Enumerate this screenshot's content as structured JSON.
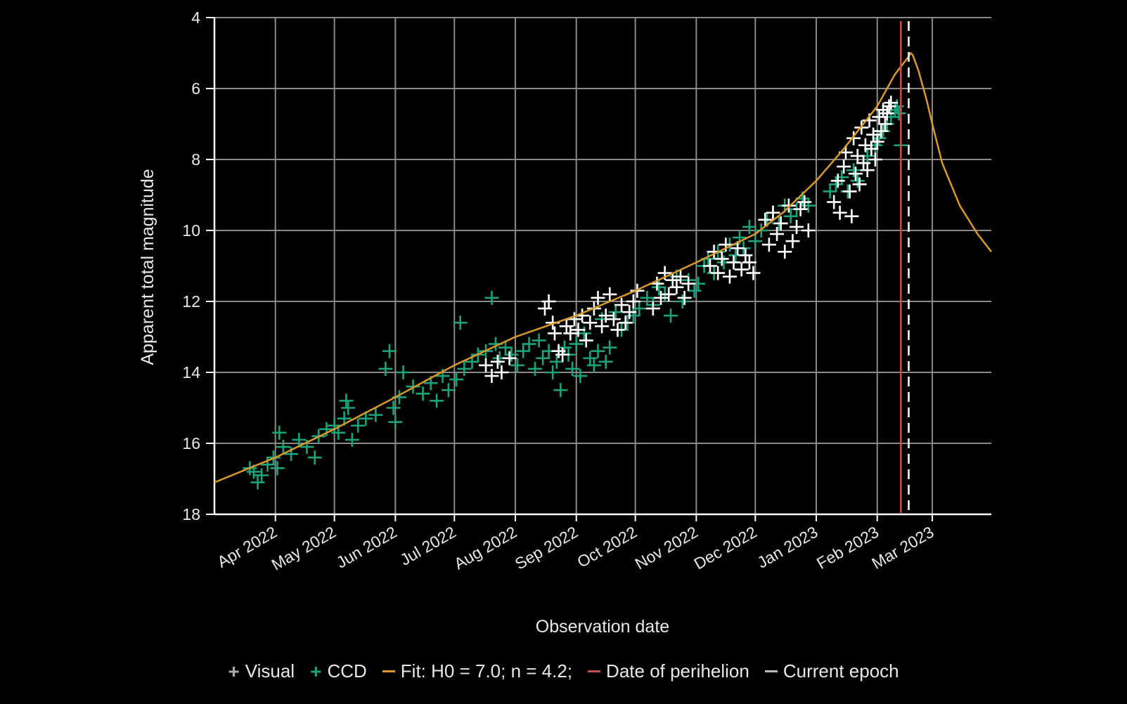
{
  "chart_data": {
    "type": "scatter",
    "xlabel": "Observation date",
    "ylabel": "Apparent total magnitude",
    "y_inverted": true,
    "ylim": [
      4,
      18
    ],
    "y_ticks": [
      "4",
      "6",
      "8",
      "10",
      "12",
      "14",
      "16",
      "18"
    ],
    "xlim": [
      "2022-03-01",
      "2023-03-31"
    ],
    "x_ticks": [
      {
        "date": "2022-04-01",
        "label": "Apr 2022"
      },
      {
        "date": "2022-05-01",
        "label": "May 2022"
      },
      {
        "date": "2022-06-01",
        "label": "Jun 2022"
      },
      {
        "date": "2022-07-01",
        "label": "Jul 2022"
      },
      {
        "date": "2022-08-01",
        "label": "Aug 2022"
      },
      {
        "date": "2022-09-01",
        "label": "Sep 2022"
      },
      {
        "date": "2022-10-01",
        "label": "Oct 2022"
      },
      {
        "date": "2022-11-01",
        "label": "Nov 2022"
      },
      {
        "date": "2022-12-01",
        "label": "Dec 2022"
      },
      {
        "date": "2023-01-01",
        "label": "Jan 2023"
      },
      {
        "date": "2023-02-01",
        "label": "Feb 2023"
      },
      {
        "date": "2023-03-01",
        "label": "Mar 2023"
      }
    ],
    "grid": true,
    "legend_position": "bottom",
    "series": [
      {
        "name": "Visual",
        "kind": "scatter",
        "marker": "+",
        "color": "#ffffff",
        "points": [
          [
            "2022-07-17",
            13.8
          ],
          [
            "2022-07-20",
            14.1
          ],
          [
            "2022-07-23",
            13.7
          ],
          [
            "2022-07-25",
            14.0
          ],
          [
            "2022-07-29",
            13.6
          ],
          [
            "2022-08-16",
            12.2
          ],
          [
            "2022-08-18",
            12.0
          ],
          [
            "2022-08-20",
            12.6
          ],
          [
            "2022-08-21",
            12.9
          ],
          [
            "2022-08-23",
            13.4
          ],
          [
            "2022-08-25",
            13.5
          ],
          [
            "2022-08-27",
            12.7
          ],
          [
            "2022-08-29",
            12.9
          ],
          [
            "2022-08-31",
            12.5
          ],
          [
            "2022-09-02",
            12.8
          ],
          [
            "2022-09-04",
            12.4
          ],
          [
            "2022-09-06",
            13.1
          ],
          [
            "2022-09-08",
            12.6
          ],
          [
            "2022-09-10",
            12.2
          ],
          [
            "2022-09-12",
            11.9
          ],
          [
            "2022-09-14",
            12.7
          ],
          [
            "2022-09-16",
            12.4
          ],
          [
            "2022-09-18",
            11.8
          ],
          [
            "2022-09-20",
            12.5
          ],
          [
            "2022-09-22",
            12.8
          ],
          [
            "2022-09-24",
            12.1
          ],
          [
            "2022-09-26",
            12.6
          ],
          [
            "2022-09-28",
            12.3
          ],
          [
            "2022-09-30",
            12.0
          ],
          [
            "2022-10-02",
            11.7
          ],
          [
            "2022-10-10",
            12.2
          ],
          [
            "2022-10-12",
            11.5
          ],
          [
            "2022-10-14",
            11.9
          ],
          [
            "2022-10-16",
            11.2
          ],
          [
            "2022-10-18",
            11.8
          ],
          [
            "2022-10-20",
            11.4
          ],
          [
            "2022-10-22",
            11.6
          ],
          [
            "2022-10-24",
            11.3
          ],
          [
            "2022-10-26",
            11.9
          ],
          [
            "2022-10-28",
            11.5
          ],
          [
            "2022-11-08",
            11.0
          ],
          [
            "2022-11-10",
            10.6
          ],
          [
            "2022-11-12",
            11.2
          ],
          [
            "2022-11-14",
            10.8
          ],
          [
            "2022-11-16",
            10.4
          ],
          [
            "2022-11-18",
            11.3
          ],
          [
            "2022-11-20",
            10.9
          ],
          [
            "2022-11-22",
            10.5
          ],
          [
            "2022-11-24",
            11.1
          ],
          [
            "2022-11-26",
            10.7
          ],
          [
            "2022-11-28",
            10.9
          ],
          [
            "2022-11-30",
            11.2
          ],
          [
            "2022-12-06",
            9.7
          ],
          [
            "2022-12-08",
            10.4
          ],
          [
            "2022-12-10",
            9.5
          ],
          [
            "2022-12-12",
            10.1
          ],
          [
            "2022-12-14",
            9.8
          ],
          [
            "2022-12-16",
            10.6
          ],
          [
            "2022-12-18",
            9.3
          ],
          [
            "2022-12-20",
            10.3
          ],
          [
            "2022-12-22",
            9.9
          ],
          [
            "2022-12-24",
            9.4
          ],
          [
            "2022-12-26",
            9.2
          ],
          [
            "2022-12-28",
            10.0
          ],
          [
            "2023-01-10",
            9.2
          ],
          [
            "2023-01-12",
            8.6
          ],
          [
            "2023-01-13",
            9.5
          ],
          [
            "2023-01-15",
            8.2
          ],
          [
            "2023-01-16",
            7.8
          ],
          [
            "2023-01-18",
            8.9
          ],
          [
            "2023-01-19",
            9.6
          ],
          [
            "2023-01-20",
            7.4
          ],
          [
            "2023-01-21",
            8.4
          ],
          [
            "2023-01-22",
            7.9
          ],
          [
            "2023-01-23",
            8.7
          ],
          [
            "2023-01-24",
            7.1
          ],
          [
            "2023-01-25",
            8.1
          ],
          [
            "2023-01-26",
            7.6
          ],
          [
            "2023-01-27",
            8.3
          ],
          [
            "2023-01-28",
            6.9
          ],
          [
            "2023-01-29",
            7.7
          ],
          [
            "2023-01-30",
            7.3
          ],
          [
            "2023-01-31",
            8.0
          ],
          [
            "2023-02-01",
            7.5
          ],
          [
            "2023-02-02",
            6.8
          ],
          [
            "2023-02-03",
            7.2
          ],
          [
            "2023-02-04",
            6.6
          ],
          [
            "2023-02-05",
            7.0
          ],
          [
            "2023-02-06",
            6.7
          ],
          [
            "2023-02-07",
            6.5
          ],
          [
            "2023-02-08",
            6.4
          ]
        ]
      },
      {
        "name": "CCD",
        "kind": "scatter",
        "marker": "+",
        "color": "#1aa37a",
        "points": [
          [
            "2022-03-19",
            16.7
          ],
          [
            "2022-03-21",
            16.8
          ],
          [
            "2022-03-23",
            17.1
          ],
          [
            "2022-03-25",
            16.9
          ],
          [
            "2022-03-28",
            16.6
          ],
          [
            "2022-03-31",
            16.4
          ],
          [
            "2022-04-02",
            16.7
          ],
          [
            "2022-04-03",
            15.7
          ],
          [
            "2022-04-05",
            16.1
          ],
          [
            "2022-04-09",
            16.3
          ],
          [
            "2022-04-13",
            15.9
          ],
          [
            "2022-04-17",
            16.1
          ],
          [
            "2022-04-21",
            16.4
          ],
          [
            "2022-04-23",
            15.8
          ],
          [
            "2022-04-27",
            15.6
          ],
          [
            "2022-05-01",
            15.5
          ],
          [
            "2022-05-03",
            15.7
          ],
          [
            "2022-05-06",
            15.3
          ],
          [
            "2022-05-07",
            14.8
          ],
          [
            "2022-05-08",
            15.0
          ],
          [
            "2022-05-10",
            15.9
          ],
          [
            "2022-05-13",
            15.5
          ],
          [
            "2022-05-17",
            15.3
          ],
          [
            "2022-05-22",
            15.2
          ],
          [
            "2022-05-27",
            13.9
          ],
          [
            "2022-05-29",
            13.4
          ],
          [
            "2022-05-31",
            15.0
          ],
          [
            "2022-06-01",
            15.4
          ],
          [
            "2022-06-03",
            14.7
          ],
          [
            "2022-06-05",
            14.0
          ],
          [
            "2022-06-10",
            14.4
          ],
          [
            "2022-06-15",
            14.6
          ],
          [
            "2022-06-19",
            14.3
          ],
          [
            "2022-06-22",
            14.8
          ],
          [
            "2022-06-25",
            14.1
          ],
          [
            "2022-06-28",
            14.5
          ],
          [
            "2022-07-02",
            14.2
          ],
          [
            "2022-07-04",
            12.6
          ],
          [
            "2022-07-06",
            13.9
          ],
          [
            "2022-07-10",
            13.7
          ],
          [
            "2022-07-13",
            13.5
          ],
          [
            "2022-07-17",
            13.4
          ],
          [
            "2022-07-20",
            11.9
          ],
          [
            "2022-07-22",
            13.2
          ],
          [
            "2022-07-24",
            13.6
          ],
          [
            "2022-07-27",
            13.3
          ],
          [
            "2022-07-30",
            13.5
          ],
          [
            "2022-08-02",
            13.8
          ],
          [
            "2022-08-05",
            13.4
          ],
          [
            "2022-08-08",
            13.2
          ],
          [
            "2022-08-11",
            13.9
          ],
          [
            "2022-08-13",
            13.1
          ],
          [
            "2022-08-15",
            13.6
          ],
          [
            "2022-08-18",
            13.4
          ],
          [
            "2022-08-20",
            14.0
          ],
          [
            "2022-08-22",
            13.7
          ],
          [
            "2022-08-24",
            14.5
          ],
          [
            "2022-08-26",
            13.3
          ],
          [
            "2022-08-28",
            13.5
          ],
          [
            "2022-08-30",
            13.9
          ],
          [
            "2022-09-01",
            13.2
          ],
          [
            "2022-09-03",
            14.1
          ],
          [
            "2022-09-05",
            12.9
          ],
          [
            "2022-09-08",
            13.6
          ],
          [
            "2022-09-10",
            13.8
          ],
          [
            "2022-09-12",
            13.4
          ],
          [
            "2022-09-14",
            12.5
          ],
          [
            "2022-09-16",
            13.7
          ],
          [
            "2022-09-18",
            13.3
          ],
          [
            "2022-09-21",
            12.3
          ],
          [
            "2022-09-24",
            12.8
          ],
          [
            "2022-09-27",
            12.6
          ],
          [
            "2022-09-30",
            12.4
          ],
          [
            "2022-10-03",
            12.2
          ],
          [
            "2022-10-07",
            11.9
          ],
          [
            "2022-10-10",
            12.1
          ],
          [
            "2022-10-13",
            11.6
          ],
          [
            "2022-10-16",
            11.8
          ],
          [
            "2022-10-19",
            12.4
          ],
          [
            "2022-10-22",
            11.3
          ],
          [
            "2022-10-25",
            12.0
          ],
          [
            "2022-10-28",
            11.4
          ],
          [
            "2022-10-31",
            11.7
          ],
          [
            "2022-11-02",
            11.5
          ],
          [
            "2022-11-05",
            11.0
          ],
          [
            "2022-11-07",
            10.8
          ],
          [
            "2022-11-10",
            11.2
          ],
          [
            "2022-11-12",
            10.6
          ],
          [
            "2022-11-15",
            10.9
          ],
          [
            "2022-11-18",
            10.4
          ],
          [
            "2022-11-21",
            10.7
          ],
          [
            "2022-11-23",
            10.2
          ],
          [
            "2022-11-25",
            10.5
          ],
          [
            "2022-11-28",
            9.9
          ],
          [
            "2022-12-01",
            10.3
          ],
          [
            "2022-12-04",
            10.0
          ],
          [
            "2022-12-07",
            9.7
          ],
          [
            "2022-12-10",
            9.5
          ],
          [
            "2022-12-13",
            9.8
          ],
          [
            "2022-12-16",
            9.3
          ],
          [
            "2022-12-19",
            9.6
          ],
          [
            "2022-12-22",
            9.4
          ],
          [
            "2022-12-25",
            9.1
          ],
          [
            "2022-12-28",
            9.3
          ],
          [
            "2023-01-08",
            8.9
          ],
          [
            "2023-01-11",
            8.7
          ],
          [
            "2023-01-14",
            8.5
          ],
          [
            "2023-01-17",
            8.9
          ],
          [
            "2023-01-20",
            8.3
          ],
          [
            "2023-01-22",
            8.6
          ],
          [
            "2023-01-25",
            8.1
          ],
          [
            "2023-01-27",
            7.9
          ],
          [
            "2023-01-29",
            7.7
          ],
          [
            "2023-01-31",
            7.6
          ],
          [
            "2023-02-02",
            7.4
          ],
          [
            "2023-02-04",
            7.2
          ],
          [
            "2023-02-06",
            7.0
          ],
          [
            "2023-02-08",
            6.8
          ],
          [
            "2023-02-10",
            6.6
          ],
          [
            "2023-02-11",
            6.5
          ],
          [
            "2023-02-12",
            6.7
          ],
          [
            "2023-02-13",
            7.6
          ]
        ]
      },
      {
        "name": "Fit: H0 = 7.0; n = 4.2;",
        "kind": "line",
        "color": "#d89a2a",
        "points": [
          [
            "2022-03-01",
            17.1
          ],
          [
            "2022-04-01",
            16.4
          ],
          [
            "2022-05-01",
            15.6
          ],
          [
            "2022-06-01",
            14.7
          ],
          [
            "2022-07-01",
            13.8
          ],
          [
            "2022-08-01",
            13.0
          ],
          [
            "2022-09-01",
            12.4
          ],
          [
            "2022-10-01",
            11.7
          ],
          [
            "2022-11-01",
            10.9
          ],
          [
            "2022-12-01",
            10.1
          ],
          [
            "2022-12-15",
            9.5
          ],
          [
            "2023-01-01",
            8.6
          ],
          [
            "2023-01-15",
            7.7
          ],
          [
            "2023-02-01",
            6.5
          ],
          [
            "2023-02-10",
            5.6
          ],
          [
            "2023-02-17",
            5.1
          ],
          [
            "2023-02-18",
            5.0
          ],
          [
            "2023-02-19",
            5.05
          ],
          [
            "2023-02-22",
            5.5
          ],
          [
            "2023-02-26",
            6.3
          ],
          [
            "2023-03-01",
            7.0
          ],
          [
            "2023-03-06",
            8.1
          ],
          [
            "2023-03-15",
            9.3
          ],
          [
            "2023-03-24",
            10.1
          ],
          [
            "2023-03-31",
            10.6
          ]
        ]
      },
      {
        "name": "Date of perihelion",
        "kind": "vline",
        "color": "#c0504d",
        "x": "2023-02-13"
      },
      {
        "name": "Current epoch",
        "kind": "vline",
        "color": "#ffffff",
        "dash": true,
        "x": "2023-02-17"
      }
    ]
  },
  "legend": {
    "items": [
      {
        "label": "Visual",
        "marker": "+",
        "color": "#aaaaaa"
      },
      {
        "label": "CCD",
        "marker": "+",
        "color": "#1aa37a"
      },
      {
        "label": "Fit: H0 = 7.0; n = 4.2;",
        "marker": "line",
        "color": "#d89a2a"
      },
      {
        "label": "Date of perihelion",
        "marker": "line",
        "color": "#c0504d"
      },
      {
        "label": "Current epoch",
        "marker": "line",
        "color": "#bbbbbb"
      }
    ]
  }
}
